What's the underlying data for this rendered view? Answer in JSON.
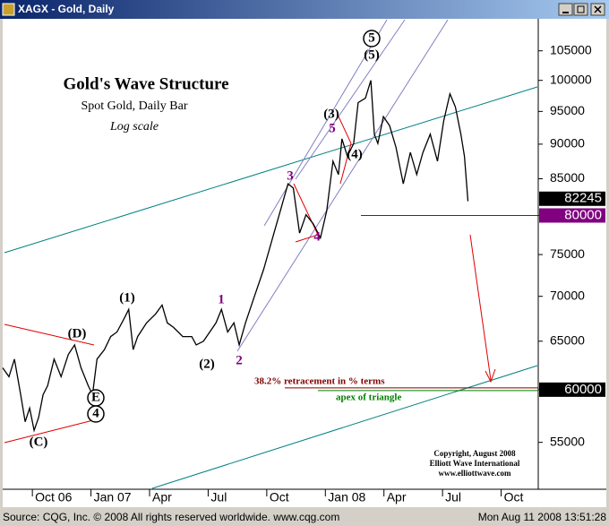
{
  "window": {
    "title": "XAGX - Gold, Daily"
  },
  "status_bar": {
    "source": "Source: CQG, Inc. © 2008 All rights reserved worldwide. www.cqg.com",
    "timestamp": "Mon Aug 11 2008 13:51:28"
  },
  "chart_data": {
    "type": "line",
    "title": "Gold's Wave Structure",
    "subtitle": "Spot Gold, Daily Bar",
    "note": "Log scale",
    "log_scale": true,
    "color": "#000000",
    "x": [
      7.48,
      7.8,
      8.08,
      8.4,
      8.63,
      8.86,
      9.09,
      9.32,
      9.55,
      9.78,
      10.11,
      10.47,
      10.84,
      11.16,
      11.49,
      11.86,
      12.08,
      12.31,
      12.69,
      13.01,
      13.33,
      13.7,
      13.93,
      14.16,
      14.39,
      14.85,
      15.31,
      15.64,
      15.91,
      16.23,
      16.7,
      17.16,
      17.39,
      17.76,
      18.08,
      18.4,
      18.68,
      19.0,
      19.32,
      19.59,
      19.91,
      20.37,
      20.84,
      21.3,
      21.76,
      22.09,
      22.36,
      22.68,
      23.01,
      23.38,
      23.75,
      24.07,
      24.39,
      24.67,
      24.85,
      25.13,
      25.45,
      25.68,
      26.05,
      26.33,
      26.51,
      26.69,
      26.97,
      27.29,
      27.62,
      27.99,
      28.35,
      28.68,
      29.0,
      29.37,
      29.74,
      30.06,
      30.38,
      30.66,
      30.94,
      31.12,
      31.3
    ],
    "values": [
      62200,
      61300,
      63100,
      59500,
      56900,
      58200,
      56100,
      57300,
      59500,
      60400,
      63100,
      61300,
      63600,
      64600,
      62200,
      60400,
      59500,
      63100,
      64100,
      65500,
      66000,
      67500,
      68500,
      64100,
      65500,
      67000,
      68000,
      69000,
      67000,
      66500,
      65500,
      65500,
      64600,
      65000,
      66000,
      67000,
      68500,
      66000,
      67000,
      64600,
      67000,
      70000,
      73200,
      77100,
      81200,
      84300,
      83700,
      77700,
      80100,
      78900,
      77100,
      80600,
      87500,
      85600,
      90800,
      88200,
      90100,
      96400,
      97100,
      100000,
      91500,
      90100,
      94200,
      92800,
      89500,
      84300,
      88800,
      85600,
      88800,
      91500,
      87500,
      93500,
      97800,
      95700,
      91500,
      88200,
      81900
    ],
    "xlim": [
      7.48,
      34.9
    ],
    "ylim": [
      50900,
      110700
    ],
    "xticks": [
      {
        "value": 9,
        "label": "Oct 06"
      },
      {
        "value": 12,
        "label": "Jan 07"
      },
      {
        "value": 15,
        "label": "Apr"
      },
      {
        "value": 18,
        "label": "Jul"
      },
      {
        "value": 21,
        "label": "Oct"
      },
      {
        "value": 24,
        "label": "Jan 08"
      },
      {
        "value": 27,
        "label": "Apr"
      },
      {
        "value": 30,
        "label": "Jul"
      },
      {
        "value": 33,
        "label": "Oct"
      }
    ],
    "yticks": [
      55000,
      60000,
      65000,
      70000,
      75000,
      80000,
      85000,
      90000,
      95000,
      100000,
      105000
    ],
    "last_price": 82245,
    "levels": [
      {
        "value": 80000,
        "color": "#800080"
      },
      {
        "value": 60000,
        "color": "#000000"
      }
    ],
    "level_notes": [
      "38.2% retracement in % terms",
      "apex of triangle"
    ],
    "wave_labels": [
      "(1)",
      "(2)",
      "(3)",
      "(4)",
      "(5)",
      "5",
      "1",
      "2",
      "3",
      "4",
      "5",
      "(C)",
      "(D)",
      "E",
      "4"
    ],
    "copyright": [
      "Copyright, August 2008",
      "Elliott Wave International",
      "www.elliottwave.com"
    ]
  }
}
